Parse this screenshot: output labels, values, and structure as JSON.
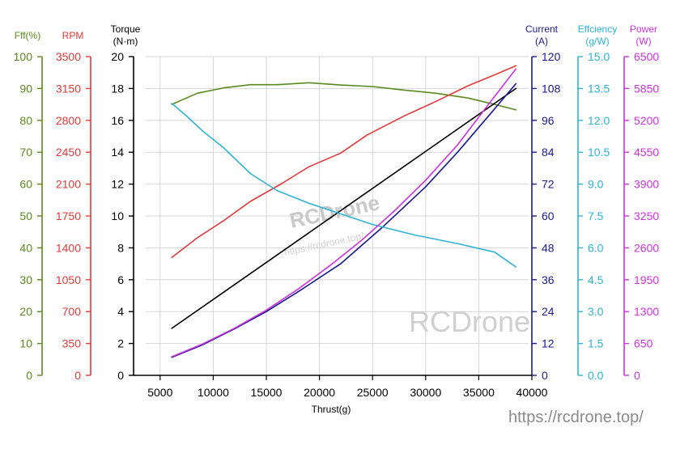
{
  "chart_data": {
    "type": "line",
    "xlabel": "Thrust(g)",
    "xlim": [
      2500,
      40000
    ],
    "x_ticks": [
      "5000",
      "10000",
      "15000",
      "20000",
      "25000",
      "30000",
      "35000",
      "40000"
    ],
    "grid": true,
    "axes": {
      "fff": {
        "label": "Fff(%)",
        "color": "#5a8a1e",
        "ylim": [
          0,
          100
        ],
        "ticks": [
          "0",
          "10",
          "20",
          "30",
          "40",
          "50",
          "60",
          "70",
          "80",
          "90",
          "100"
        ]
      },
      "rpm": {
        "label": "RPM",
        "color": "#e03a3a",
        "ylim": [
          0,
          3500
        ],
        "ticks": [
          "0",
          "350",
          "700",
          "1050",
          "1400",
          "1750",
          "2100",
          "2450",
          "2800",
          "3150",
          "3500"
        ]
      },
      "torque": {
        "label1": "Torque",
        "label2": "(N·m)",
        "color": "#000000",
        "ylim": [
          0,
          20
        ],
        "ticks": [
          "0",
          "2",
          "4",
          "6",
          "8",
          "10",
          "12",
          "14",
          "16",
          "18",
          "20"
        ]
      },
      "current": {
        "label1": "Current",
        "label2": "(A)",
        "color": "#1a1a8c",
        "ylim": [
          0,
          120
        ],
        "ticks": [
          "0",
          "12",
          "24",
          "36",
          "48",
          "60",
          "72",
          "84",
          "96",
          "108",
          "120"
        ]
      },
      "eff": {
        "label1": "Effciency",
        "label2": "(g/W)",
        "color": "#2fb2d8",
        "ylim": [
          0,
          15
        ],
        "ticks": [
          "0.0",
          "1.5",
          "3.0",
          "4.5",
          "6.0",
          "7.5",
          "9.0",
          "10.5",
          "12.0",
          "13.5",
          "15.0"
        ]
      },
      "power": {
        "label1": "Power",
        "label2": "(W)",
        "color": "#cc33dd",
        "ylim": [
          0,
          6500
        ],
        "ticks": [
          "0",
          "650",
          "1300",
          "1950",
          "2600",
          "3250",
          "3900",
          "4550",
          "5200",
          "5850",
          "6500"
        ]
      }
    },
    "series": [
      {
        "axis": "fff",
        "color": "#5a8a1e",
        "x": [
          6100,
          8500,
          11000,
          13500,
          16000,
          19000,
          22000,
          25000,
          28000,
          31000,
          34000,
          36500,
          38500
        ],
        "y": [
          85,
          88.5,
          90.2,
          91.2,
          91.2,
          91.8,
          91.1,
          90.6,
          89.5,
          88.5,
          87,
          85,
          83.3
        ]
      },
      {
        "axis": "rpm",
        "color": "#e03a3a",
        "x": [
          6100,
          8500,
          11000,
          13500,
          16500,
          19000,
          22000,
          24500,
          28000,
          31000,
          34000,
          36500,
          38500
        ],
        "y": [
          1295,
          1510,
          1700,
          1910,
          2110,
          2290,
          2440,
          2640,
          2850,
          3010,
          3180,
          3300,
          3400
        ]
      },
      {
        "axis": "torque",
        "color": "#000000",
        "x": [
          6100,
          38500
        ],
        "y": [
          2.95,
          18.0
        ]
      },
      {
        "axis": "current",
        "color": "#1a1a8c",
        "x": [
          6100,
          9000,
          12000,
          15000,
          18000,
          22000,
          26000,
          30000,
          33000,
          36000,
          38500
        ],
        "y": [
          6.8,
          11.5,
          17.5,
          24,
          31.5,
          42,
          56,
          71,
          84,
          98,
          109.8
        ]
      },
      {
        "axis": "eff",
        "color": "#2fb2d8",
        "x": [
          6100,
          7500,
          9000,
          11000,
          13500,
          16000,
          19000,
          22000,
          25000,
          29000,
          33000,
          36500,
          38500
        ],
        "y": [
          12.8,
          12.2,
          11.5,
          10.7,
          9.5,
          8.7,
          8.1,
          7.6,
          7.1,
          6.6,
          6.2,
          5.8,
          5.1
        ]
      },
      {
        "axis": "power",
        "color": "#cc33dd",
        "x": [
          6100,
          9000,
          12000,
          15000,
          18000,
          21000,
          24000,
          27000,
          30000,
          33000,
          36000,
          38500
        ],
        "y": [
          380,
          640,
          960,
          1330,
          1760,
          2240,
          2760,
          3340,
          3980,
          4700,
          5550,
          6250
        ]
      }
    ]
  },
  "watermark": {
    "brand": "RCDrone",
    "small_url": "https://rcdrone.top/",
    "url": "https://rcdrone.top/"
  }
}
